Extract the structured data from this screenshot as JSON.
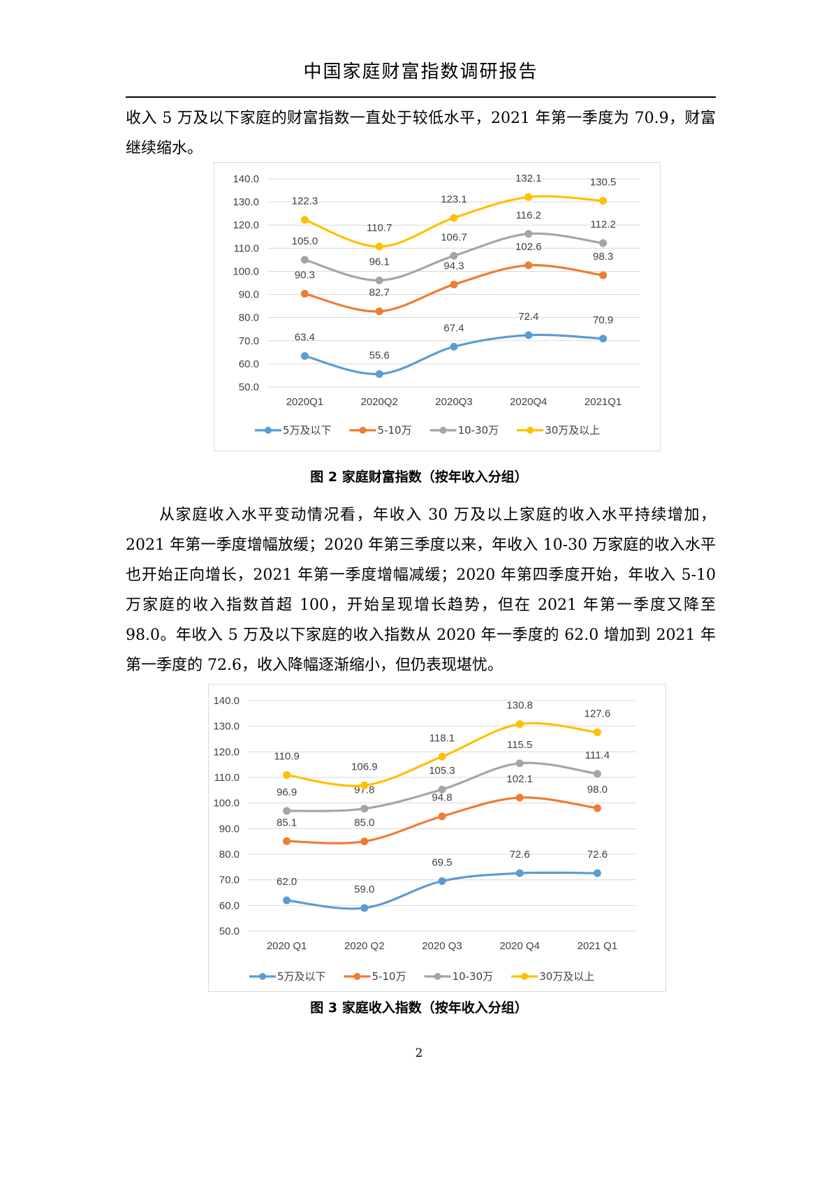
{
  "header": {
    "title": "中国家庭财富指数调研报告"
  },
  "paragraphs": [
    "收入 5 万及以下家庭的财富指数一直处于较低水平，2021 年第一季度为 70.9，财富继续缩水。",
    "从家庭收入水平变动情况看，年收入 30 万及以上家庭的收入水平持续增加，2021 年第一季度增幅放缓；2020 年第三季度以来，年收入 10-30 万家庭的收入水平也开始正向增长，2021 年第一季度增幅减缓；2020 年第四季度开始，年收入 5-10 万家庭的收入指数首超 100，开始呈现增长趋势，但在 2021 年第一季度又降至 98.0。年收入 5 万及以下家庭的收入指数从 2020 年一季度的 62.0 增加到 2021 年第一季度的 72.6，收入降幅逐渐缩小，但仍表现堪忧。"
  ],
  "captions": {
    "fig2": "图 2 家庭财富指数（按年收入分组）",
    "fig3": "图 3 家庭收入指数（按年收入分组）"
  },
  "page_number": "2",
  "colors": {
    "s1": "#5B9BD5",
    "s2": "#ED7D31",
    "s3": "#A5A5A5",
    "s4": "#FFC000",
    "grid": "#d9d9d9"
  },
  "chart_data": [
    {
      "type": "line",
      "categories": [
        "2020Q1",
        "2020Q2",
        "2020Q3",
        "2020Q4",
        "2021Q1"
      ],
      "yticks": [
        "50.0",
        "60.0",
        "70.0",
        "80.0",
        "90.0",
        "100.0",
        "110.0",
        "120.0",
        "130.0",
        "140.0"
      ],
      "ylim": [
        50,
        140
      ],
      "grid": true,
      "legend": "bottom",
      "series": [
        {
          "name": "5万及以下",
          "values": [
            63.4,
            55.6,
            67.4,
            72.4,
            70.9
          ],
          "labels": [
            "63.4",
            "55.6",
            "67.4",
            "72.4",
            "70.9"
          ]
        },
        {
          "name": "5-10万",
          "values": [
            90.3,
            82.7,
            94.3,
            102.6,
            98.3
          ],
          "labels": [
            "90.3",
            "82.7",
            "94.3",
            "102.6",
            "98.3"
          ]
        },
        {
          "name": "10-30万",
          "values": [
            105.0,
            96.1,
            106.7,
            116.2,
            112.2
          ],
          "labels": [
            "105.0",
            "96.1",
            "106.7",
            "116.2",
            "112.2"
          ]
        },
        {
          "name": "30万及以上",
          "values": [
            122.3,
            110.7,
            123.1,
            132.1,
            130.5
          ],
          "labels": [
            "122.3",
            "110.7",
            "123.1",
            "132.1",
            "130.5"
          ]
        }
      ]
    },
    {
      "type": "line",
      "categories": [
        "2020 Q1",
        "2020 Q2",
        "2020 Q3",
        "2020 Q4",
        "2021 Q1"
      ],
      "yticks": [
        "50.0",
        "60.0",
        "70.0",
        "80.0",
        "90.0",
        "100.0",
        "110.0",
        "120.0",
        "130.0",
        "140.0"
      ],
      "ylim": [
        50,
        140
      ],
      "grid": true,
      "legend": "bottom",
      "series": [
        {
          "name": "5万及以下",
          "values": [
            62.0,
            59.0,
            69.5,
            72.6,
            72.6
          ],
          "labels": [
            "62.0",
            "59.0",
            "69.5",
            "72.6",
            "72.6"
          ]
        },
        {
          "name": "5-10万",
          "values": [
            85.1,
            85.0,
            94.8,
            102.1,
            98.0
          ],
          "labels": [
            "85.1",
            "85.0",
            "94.8",
            "102.1",
            "98.0"
          ]
        },
        {
          "name": "10-30万",
          "values": [
            96.9,
            97.8,
            105.3,
            115.5,
            111.4
          ],
          "labels": [
            "96.9",
            "97.8",
            "105.3",
            "115.5",
            "111.4"
          ]
        },
        {
          "name": "30万及以上",
          "values": [
            110.9,
            106.9,
            118.1,
            130.8,
            127.6
          ],
          "labels": [
            "110.9",
            "106.9",
            "118.1",
            "130.8",
            "127.6"
          ]
        }
      ]
    }
  ]
}
